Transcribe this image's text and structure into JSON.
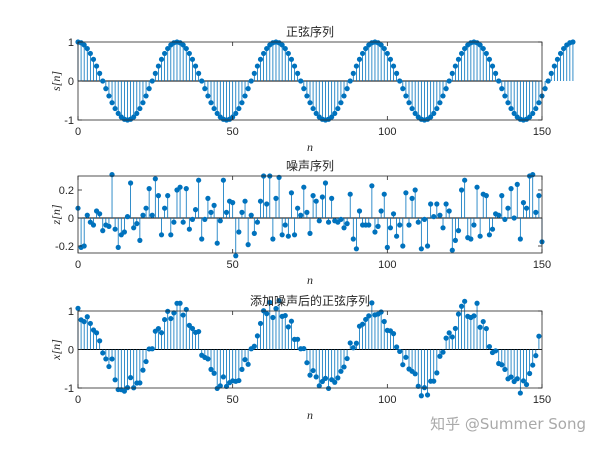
{
  "watermark": "知乎 @Summer Song",
  "colors": {
    "series": "#0072BD",
    "axis": "#262626",
    "zero": "#000000"
  },
  "chart_data": [
    {
      "type": "stem",
      "title": "正弦序列",
      "xlabel": "n",
      "ylabel": "s[n]",
      "xlim": [
        0,
        150
      ],
      "ylim": [
        -1,
        1
      ],
      "xticks": [
        0,
        50,
        100,
        150
      ],
      "yticks": [
        -1,
        0,
        1
      ],
      "grid": false,
      "x_start": 0,
      "values": [
        1.0,
        0.981,
        0.924,
        0.831,
        0.707,
        0.556,
        0.383,
        0.195,
        0.0,
        -0.195,
        -0.383,
        -0.556,
        -0.707,
        -0.831,
        -0.924,
        -0.981,
        -1.0,
        -0.981,
        -0.924,
        -0.831,
        -0.707,
        -0.556,
        -0.383,
        -0.195,
        0.0,
        0.195,
        0.383,
        0.556,
        0.707,
        0.831,
        0.924,
        0.981,
        1.0,
        0.981,
        0.924,
        0.831,
        0.707,
        0.556,
        0.383,
        0.195,
        0.0,
        -0.195,
        -0.383,
        -0.556,
        -0.707,
        -0.831,
        -0.924,
        -0.981,
        -1.0,
        -0.981,
        -0.924,
        -0.831,
        -0.707,
        -0.556,
        -0.383,
        -0.195,
        0.0,
        0.195,
        0.383,
        0.556,
        0.707,
        0.831,
        0.924,
        0.981,
        1.0,
        0.981,
        0.924,
        0.831,
        0.707,
        0.556,
        0.383,
        0.195,
        0.0,
        -0.195,
        -0.383,
        -0.556,
        -0.707,
        -0.831,
        -0.924,
        -0.981,
        -1.0,
        -0.981,
        -0.924,
        -0.831,
        -0.707,
        -0.556,
        -0.383,
        -0.195,
        0.0,
        0.195,
        0.383,
        0.556,
        0.707,
        0.831,
        0.924,
        0.981,
        1.0,
        0.981,
        0.924,
        0.831,
        0.707,
        0.556,
        0.383,
        0.195,
        0.0,
        -0.195,
        -0.383,
        -0.556,
        -0.707,
        -0.831,
        -0.924,
        -0.981,
        -1.0,
        -0.981,
        -0.924,
        -0.831,
        -0.707,
        -0.556,
        -0.383,
        -0.195,
        0.0,
        0.195,
        0.383,
        0.556,
        0.707,
        0.831,
        0.924,
        0.981,
        1.0,
        0.981,
        0.924,
        0.831,
        0.707,
        0.556,
        0.383,
        0.195,
        0.0,
        -0.195,
        -0.383,
        -0.556,
        -0.707,
        -0.831,
        -0.924,
        -0.981,
        -1.0,
        -0.981,
        -0.924,
        -0.831,
        -0.707,
        -0.556,
        -0.383,
        -0.195,
        0.0,
        0.195,
        0.383,
        0.556,
        0.707,
        0.831,
        0.924,
        0.981,
        1.0
      ]
    },
    {
      "type": "stem",
      "title": "噪声序列",
      "xlabel": "n",
      "ylabel": "z[n]",
      "xlim": [
        0,
        150
      ],
      "ylim": [
        -0.25,
        0.3
      ],
      "xticks": [
        0,
        50,
        100,
        150
      ],
      "yticks": [
        -0.2,
        0,
        0.2
      ],
      "grid": false,
      "x_start": 0,
      "values": [
        0.07,
        -0.21,
        -0.2,
        0.02,
        -0.03,
        -0.05,
        0.05,
        0.03,
        -0.09,
        -0.05,
        -0.06,
        0.31,
        -0.08,
        -0.21,
        -0.12,
        -0.1,
        0.01,
        0.25,
        -0.07,
        -0.04,
        -0.16,
        0.02,
        0.07,
        0.21,
        0.02,
        0.28,
        0.16,
        -0.12,
        0.07,
        0.16,
        -0.12,
        -0.03,
        0.2,
        0.22,
        -0.03,
        0.21,
        -0.08,
        -0.01,
        0.06,
        0.27,
        -0.15,
        -0.01,
        0.14,
        0.04,
        0.09,
        -0.18,
        -0.02,
        0.27,
        0.04,
        0.12,
        0.11,
        -0.27,
        -0.1,
        0.04,
        0.12,
        -0.19,
        0.02,
        -0.11,
        -0.03,
        0.12,
        0.3,
        0.1,
        0.3,
        -0.15,
        0.14,
        0.29,
        -0.12,
        -0.05,
        -0.13,
        0.18,
        -0.12,
        0.07,
        0.02,
        0.22,
        0.04,
        -0.11,
        0.16,
        0.12,
        -0.02,
        0.15,
        0.25,
        -0.03,
        0.14,
        -0.02,
        -0.03,
        -0.01,
        -0.07,
        -0.04,
        0.17,
        -0.15,
        -0.22,
        0.05,
        -0.05,
        -0.05,
        -0.05,
        0.23,
        -0.1,
        -0.06,
        0.05,
        0.17,
        -0.21,
        -0.07,
        0.03,
        -0.13,
        -0.05,
        -0.2,
        0.18,
        -0.05,
        0.14,
        0.2,
        -0.03,
        -0.22,
        -0.01,
        -0.2,
        0.1,
        0.01,
        0.1,
        0.02,
        -0.07,
        0.1,
        0.05,
        -0.23,
        -0.16,
        -0.09,
        0.2,
        0.27,
        -0.14,
        -0.15,
        -0.05,
        0.22,
        -0.13,
        0.17,
        0.16,
        -0.12,
        -0.08,
        0.03,
        0.02,
        0.16,
        -0.01,
        0.07,
        0.21,
        0.0,
        0.24,
        -0.15,
        0.11,
        0.07,
        0.3,
        0.31,
        0.04,
        0.16,
        -0.17
      ]
    },
    {
      "type": "stem",
      "title": "添加噪声后的正弦序列",
      "xlabel": "n",
      "ylabel": "x[n]",
      "xlim": [
        0,
        150
      ],
      "ylim": [
        -1,
        1
      ],
      "xticks": [
        0,
        50,
        100,
        150
      ],
      "yticks": [
        -1,
        0,
        1
      ],
      "grid": false,
      "x_start": 0,
      "values": [
        1.07,
        0.771,
        0.724,
        0.851,
        0.677,
        0.506,
        0.433,
        0.225,
        -0.09,
        -0.245,
        -0.443,
        -0.246,
        -0.787,
        -1.041,
        -1.044,
        -1.081,
        -0.99,
        -0.731,
        -0.994,
        -0.871,
        -0.867,
        -0.536,
        -0.313,
        0.015,
        0.02,
        0.475,
        0.543,
        0.436,
        0.777,
        0.991,
        0.804,
        0.951,
        1.2,
        1.201,
        0.894,
        1.041,
        0.627,
        0.546,
        0.443,
        0.465,
        -0.15,
        -0.205,
        -0.243,
        -0.516,
        -0.617,
        -1.011,
        -0.944,
        -0.711,
        -0.96,
        -0.861,
        -0.814,
        -0.826,
        -0.807,
        -0.516,
        -0.263,
        -0.385,
        0.02,
        0.085,
        0.353,
        0.677,
        1.007,
        0.931,
        1.224,
        0.831,
        1.064,
        1.271,
        0.861,
        0.881,
        0.587,
        0.736,
        0.263,
        0.265,
        0.02,
        0.025,
        -0.343,
        -0.666,
        -0.547,
        -0.711,
        -0.944,
        -0.831,
        -0.75,
        -1.011,
        -0.784,
        -0.851,
        -0.737,
        -0.566,
        -0.453,
        -0.235,
        0.17,
        0.045,
        0.163,
        0.606,
        0.657,
        0.781,
        0.874,
        1.211,
        0.9,
        0.921,
        0.974,
        0.727,
        0.497,
        0.486,
        0.413,
        0.065,
        -0.05,
        -0.395,
        -0.203,
        -0.506,
        -0.567,
        -0.631,
        -0.954,
        -1.201,
        -0.991,
        -1.181,
        -0.824,
        -0.821,
        -0.607,
        -0.175,
        -0.07,
        0.295,
        0.433,
        0.326,
        0.547,
        0.921,
        1.124,
        1.251,
        0.86,
        0.831,
        0.874,
        1.201,
        0.577,
        0.726,
        0.543,
        0.075,
        -0.08,
        -0.035,
        -0.363,
        -0.396,
        -0.517,
        -0.761,
        -0.714,
        -0.831,
        -0.76,
        -1.131,
        -0.814,
        -0.911,
        -0.623,
        -0.405,
        -0.16,
        0.345
      ]
    }
  ]
}
